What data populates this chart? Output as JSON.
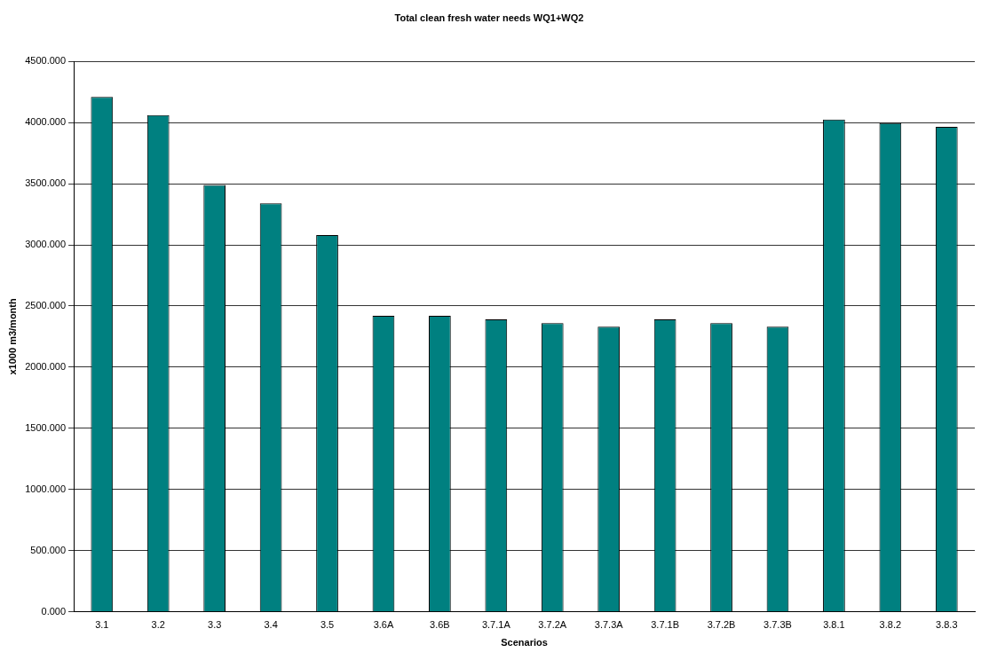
{
  "chart_data": {
    "type": "bar",
    "title": "Total clean fresh water needs WQ1+WQ2",
    "xlabel": "Scenarios",
    "ylabel": "x1000 m3/month",
    "categories": [
      "3.1",
      "3.2",
      "3.3",
      "3.4",
      "3.5",
      "3.6A",
      "3.6B",
      "3.7.1A",
      "3.7.2A",
      "3.7.3A",
      "3.7.1B",
      "3.7.2B",
      "3.7.3B",
      "3.8.1",
      "3.8.2",
      "3.8.3"
    ],
    "values": [
      4210,
      4060,
      3490,
      3340,
      3080,
      2420,
      2420,
      2390,
      2360,
      2330,
      2390,
      2360,
      2330,
      4025,
      3995,
      3965
    ],
    "color": "#008080",
    "ylim": [
      0,
      4500
    ],
    "yticks": [
      {
        "value": 0,
        "label": "0.000"
      },
      {
        "value": 500,
        "label": "500.000"
      },
      {
        "value": 1000,
        "label": "1000.000"
      },
      {
        "value": 1500,
        "label": "1500.000"
      },
      {
        "value": 2000,
        "label": "2000.000"
      },
      {
        "value": 2500,
        "label": "2500.000"
      },
      {
        "value": 3000,
        "label": "3000.000"
      },
      {
        "value": 3500,
        "label": "3500.000"
      },
      {
        "value": 4000,
        "label": "4000.000"
      },
      {
        "value": 4500,
        "label": "4500.000"
      }
    ],
    "grid": "y",
    "legend": false
  }
}
